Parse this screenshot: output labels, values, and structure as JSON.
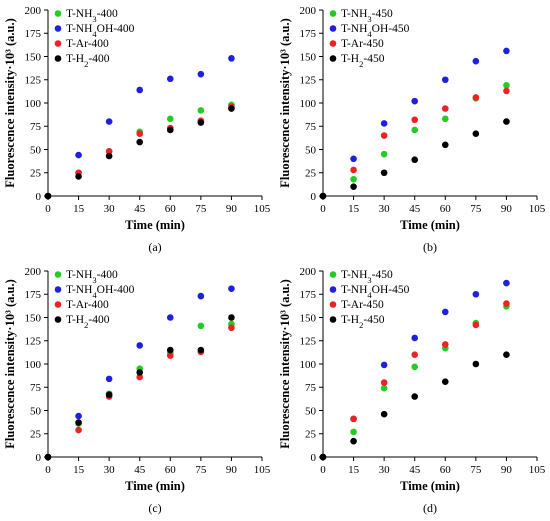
{
  "colors": {
    "green": "#22cc22",
    "blue": "#1f1fe0",
    "red": "#ee2222",
    "black": "#000000"
  },
  "chart_data": [
    {
      "type": "scatter",
      "panel_label": "(a)",
      "xlabel": "Time (min)",
      "ylabel": "Fluorescence intensity·10³ (a.u.)",
      "xlim": [
        0,
        105
      ],
      "ylim": [
        0,
        200
      ],
      "xticks": [
        0,
        15,
        30,
        45,
        60,
        75,
        90,
        105
      ],
      "yticks": [
        0,
        25,
        50,
        75,
        100,
        125,
        150,
        175,
        200
      ],
      "legend_position": "top-left",
      "x": [
        0,
        15,
        30,
        45,
        60,
        75,
        90
      ],
      "series": [
        {
          "base": "T-NH",
          "sub": "3",
          "tail": "-400",
          "color": "#22cc22",
          "values": [
            0,
            25,
            48,
            69,
            83,
            92,
            98
          ]
        },
        {
          "base": "T-NH",
          "sub": "4",
          "tail": "OH-400",
          "color": "#1f1fe0",
          "values": [
            0,
            44,
            80,
            114,
            126,
            131,
            148
          ]
        },
        {
          "base": "T-Ar-400",
          "sub": "",
          "tail": "",
          "color": "#ee2222",
          "values": [
            0,
            25,
            48,
            67,
            73,
            81,
            96
          ]
        },
        {
          "base": "T-H",
          "sub": "2",
          "tail": "-400",
          "color": "#000000",
          "values": [
            0,
            21,
            43,
            58,
            71,
            79,
            94
          ]
        }
      ]
    },
    {
      "type": "scatter",
      "panel_label": "(b)",
      "xlabel": "Time (min)",
      "ylabel": "Fluorescence intensity·10³ (a.u.)",
      "xlim": [
        0,
        105
      ],
      "ylim": [
        0,
        200
      ],
      "xticks": [
        0,
        15,
        30,
        45,
        60,
        75,
        90,
        105
      ],
      "yticks": [
        0,
        25,
        50,
        75,
        100,
        125,
        150,
        175,
        200
      ],
      "legend_position": "top-left",
      "x": [
        0,
        15,
        30,
        45,
        60,
        75,
        90
      ],
      "series": [
        {
          "base": "T-NH",
          "sub": "3",
          "tail": "-450",
          "color": "#22cc22",
          "values": [
            0,
            18,
            45,
            71,
            83,
            105,
            119
          ]
        },
        {
          "base": "T-NH",
          "sub": "4",
          "tail": "OH-450",
          "color": "#1f1fe0",
          "values": [
            0,
            40,
            78,
            102,
            125,
            145,
            156
          ]
        },
        {
          "base": "T-Ar-450",
          "sub": "",
          "tail": "",
          "color": "#ee2222",
          "values": [
            0,
            28,
            65,
            82,
            94,
            106,
            113
          ]
        },
        {
          "base": "T-H",
          "sub": "2",
          "tail": "-450",
          "color": "#000000",
          "values": [
            0,
            10,
            25,
            39,
            55,
            67,
            80
          ]
        }
      ]
    },
    {
      "type": "scatter",
      "panel_label": "(c)",
      "xlabel": "Time (min)",
      "ylabel": "Fluorescence intensity·10³ (a.u.)",
      "xlim": [
        0,
        105
      ],
      "ylim": [
        0,
        200
      ],
      "xticks": [
        0,
        15,
        30,
        45,
        60,
        75,
        90,
        105
      ],
      "yticks": [
        0,
        25,
        50,
        75,
        100,
        125,
        150,
        175,
        200
      ],
      "legend_position": "top-left",
      "x": [
        0,
        15,
        30,
        45,
        60,
        75,
        90
      ],
      "series": [
        {
          "base": "T-NH",
          "sub": "3",
          "tail": "-400",
          "color": "#22cc22",
          "values": [
            0,
            36,
            68,
            95,
            112,
            141,
            143
          ]
        },
        {
          "base": "T-NH",
          "sub": "4",
          "tail": "OH-400",
          "color": "#1f1fe0",
          "values": [
            0,
            44,
            84,
            120,
            150,
            173,
            181
          ]
        },
        {
          "base": "T-Ar-400",
          "sub": "",
          "tail": "",
          "color": "#ee2222",
          "values": [
            0,
            29,
            65,
            86,
            109,
            113,
            139
          ]
        },
        {
          "base": "T-H",
          "sub": "2",
          "tail": "-400",
          "color": "#000000",
          "values": [
            0,
            37,
            67,
            91,
            115,
            115,
            150
          ]
        }
      ]
    },
    {
      "type": "scatter",
      "panel_label": "(d)",
      "xlabel": "Time (min)",
      "ylabel": "Fluorescence intensity·10³ (a.u.)",
      "xlim": [
        0,
        105
      ],
      "ylim": [
        0,
        200
      ],
      "xticks": [
        0,
        15,
        30,
        45,
        60,
        75,
        90,
        105
      ],
      "yticks": [
        0,
        25,
        50,
        75,
        100,
        125,
        150,
        175,
        200
      ],
      "legend_position": "top-left",
      "x": [
        0,
        15,
        30,
        45,
        60,
        75,
        90
      ],
      "series": [
        {
          "base": "T-NH",
          "sub": "3",
          "tail": "-450",
          "color": "#22cc22",
          "values": [
            0,
            27,
            74,
            97,
            117,
            144,
            162
          ]
        },
        {
          "base": "T-NH",
          "sub": "4",
          "tail": "OH-450",
          "color": "#1f1fe0",
          "values": [
            0,
            41,
            99,
            128,
            156,
            175,
            187
          ]
        },
        {
          "base": "T-Ar-450",
          "sub": "",
          "tail": "",
          "color": "#ee2222",
          "values": [
            0,
            41,
            80,
            110,
            121,
            142,
            165
          ]
        },
        {
          "base": "T-H",
          "sub": "2",
          "tail": "-450",
          "color": "#000000",
          "values": [
            0,
            17,
            46,
            65,
            81,
            100,
            110
          ]
        }
      ]
    }
  ]
}
